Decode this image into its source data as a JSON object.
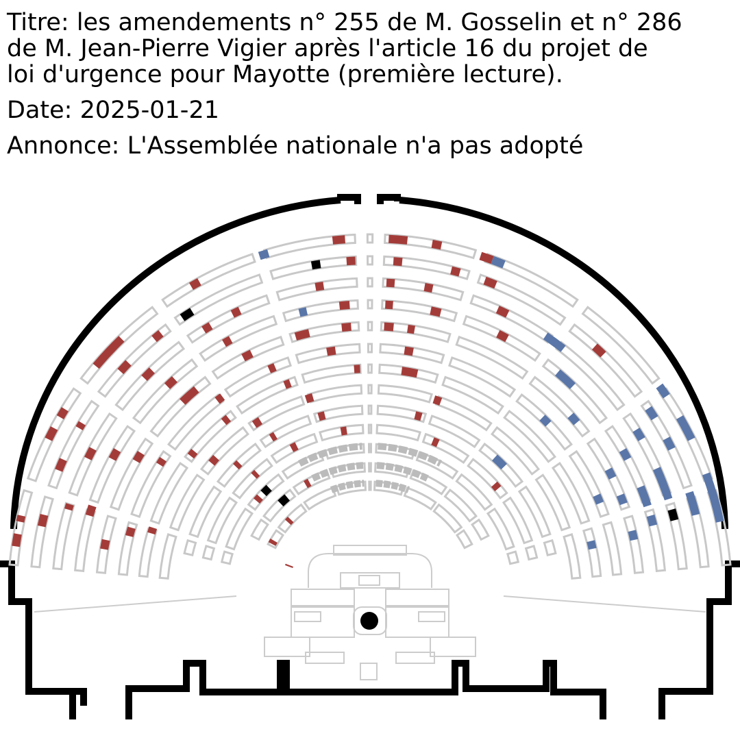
{
  "header": {
    "title_lines": [
      "Titre: les amendements n° 255 de M. Gosselin et n° 286",
      "de M. Jean-Pierre Vigier après l'article 16 du projet de",
      "loi d'urgence pour Mayotte (première lecture)."
    ],
    "date_line": "Date: 2025-01-21",
    "announcement_line": "Annonce: L'Assemblée nationale n'a pas adopté"
  },
  "colors": {
    "wall": "#000000",
    "empty_seat_outline": "#c8c8c8",
    "government_bench": "#bbbbbb",
    "vote_red": "#a33c39",
    "vote_blue": "#5a76a8",
    "vote_black": "#000000",
    "podium": "#000000"
  },
  "legend_meaning": {
    "vote_red": "",
    "vote_blue": "",
    "vote_black": ""
  },
  "icons": {
    "hemicycle": "hemicycle-floor-plan",
    "podium": "speaker-podium-dot"
  }
}
